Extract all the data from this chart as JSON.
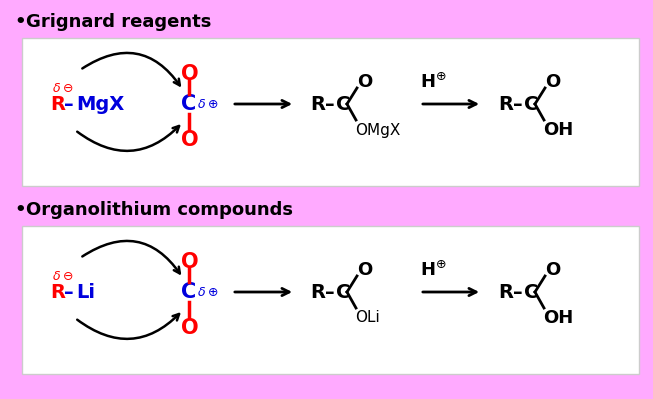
{
  "bg": "#FFAAFF",
  "panel_fc": "#FFFFFF",
  "panel_ec": "#CCCCCC",
  "red": "#FF0000",
  "blue": "#0000DD",
  "black": "#000000",
  "figw": 6.53,
  "figh": 3.99,
  "dpi": 100,
  "title1": "Grignard reagents",
  "title2": "Organolithium compounds",
  "reagent1": "MgX",
  "reagent2": "Li",
  "product1": "OMgX",
  "product2": "OLi"
}
